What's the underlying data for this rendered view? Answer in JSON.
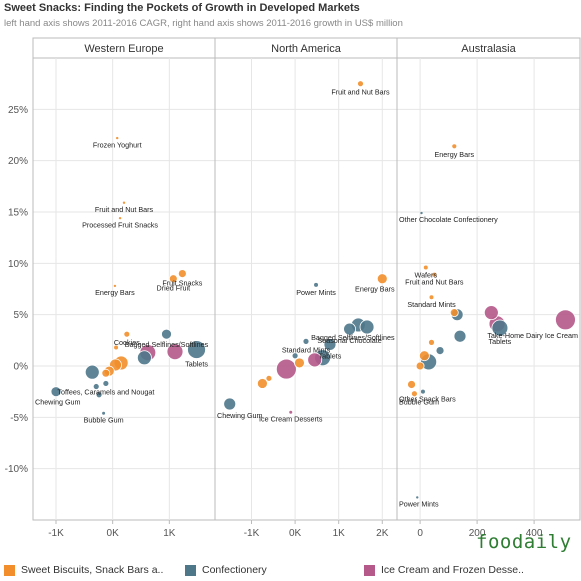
{
  "title": "Sweet Snacks: Finding the Pockets of Growth in Developed Markets",
  "subtitle": "left hand axis shows 2011-2016 CAGR, right hand axis shows 2011-2016 growth in US$ million",
  "brand": "foodaily",
  "colors": {
    "Sweet Biscuits": "#f28e2b",
    "Confectionery": "#4e7789",
    "Ice Cream": "#b5588a",
    "grid": "#e6e6e6",
    "axis": "#bbbbbb"
  },
  "legend": [
    {
      "series": "Sweet Biscuits",
      "label": "Sweet Biscuits, Snack Bars a.."
    },
    {
      "series": "Confectionery",
      "label": "Confectionery"
    },
    {
      "series": "Ice Cream",
      "label": "Ice Cream and Frozen Desse.."
    }
  ],
  "chart_data": {
    "type": "scatter",
    "ylim": [
      -15,
      30
    ],
    "y_ticks": [
      -10,
      -5,
      0,
      5,
      10,
      15,
      20,
      25
    ],
    "y_tick_labels": [
      "-10%",
      "-5%",
      "0%",
      "5%",
      "10%",
      "15%",
      "20%",
      "25%"
    ],
    "panels": [
      {
        "name": "Western Europe",
        "xlim": [
          -1300,
          1700
        ],
        "x_ticks": [
          -1000,
          0,
          1000
        ],
        "x_tick_labels": [
          "-1K",
          "0K",
          "1K"
        ],
        "points": [
          {
            "x": -1000,
            "y": -2.5,
            "series": "Confectionery",
            "r": 5,
            "label": "Chewing Gum"
          },
          {
            "x": -360,
            "y": -0.6,
            "series": "Confectionery",
            "r": 7
          },
          {
            "x": -290,
            "y": -2.0,
            "series": "Confectionery",
            "r": 3
          },
          {
            "x": -240,
            "y": -2.8,
            "series": "Confectionery",
            "r": 3
          },
          {
            "x": -160,
            "y": -4.6,
            "series": "Confectionery",
            "r": 1.5,
            "label": "Bubble Gum"
          },
          {
            "x": -120,
            "y": -1.7,
            "series": "Confectionery",
            "r": 3,
            "label": "Toffees, Caramels and Nougat"
          },
          {
            "x": 80,
            "y": 22.2,
            "series": "Sweet Biscuits",
            "r": 1.2,
            "label": "Frozen Yoghurt"
          },
          {
            "x": 200,
            "y": 15.9,
            "series": "Sweet Biscuits",
            "r": 1.2,
            "label": "Fruit and Nut Bars"
          },
          {
            "x": 130,
            "y": 14.4,
            "series": "Sweet Biscuits",
            "r": 1.2,
            "label": "Processed Fruit Snacks"
          },
          {
            "x": 40,
            "y": 7.8,
            "series": "Sweet Biscuits",
            "r": 1.2,
            "label": "Energy Bars"
          },
          {
            "x": 1070,
            "y": 8.5,
            "series": "Sweet Biscuits",
            "r": 4,
            "label": "Dried Fruit"
          },
          {
            "x": 1230,
            "y": 9.0,
            "series": "Sweet Biscuits",
            "r": 4,
            "label": "Fruit Snacks"
          },
          {
            "x": 250,
            "y": 3.1,
            "series": "Sweet Biscuits",
            "r": 3,
            "label": "Cookies"
          },
          {
            "x": 60,
            "y": 1.8,
            "series": "Sweet Biscuits",
            "r": 2
          },
          {
            "x": 950,
            "y": 3.1,
            "series": "Confectionery",
            "r": 5,
            "label": "Bagged Selflines/Softlines"
          },
          {
            "x": 1480,
            "y": 1.6,
            "series": "Confectionery",
            "r": 9,
            "label": "Tablets"
          },
          {
            "x": 1100,
            "y": 1.4,
            "series": "Ice Cream",
            "r": 8
          },
          {
            "x": 620,
            "y": 1.3,
            "series": "Ice Cream",
            "r": 8
          },
          {
            "x": 560,
            "y": 0.8,
            "series": "Confectionery",
            "r": 7
          },
          {
            "x": 150,
            "y": 0.3,
            "series": "Sweet Biscuits",
            "r": 7
          },
          {
            "x": 50,
            "y": 0.1,
            "series": "Sweet Biscuits",
            "r": 6
          },
          {
            "x": -60,
            "y": -0.5,
            "series": "Sweet Biscuits",
            "r": 5
          },
          {
            "x": -120,
            "y": -0.7,
            "series": "Sweet Biscuits",
            "r": 4
          }
        ]
      },
      {
        "name": "North America",
        "xlim": [
          -1700,
          2200
        ],
        "x_ticks": [
          -1000,
          0,
          1000,
          2000
        ],
        "x_tick_labels": [
          "-1K",
          "0K",
          "1K",
          "2K"
        ],
        "points": [
          {
            "x": 1500,
            "y": 27.5,
            "series": "Sweet Biscuits",
            "r": 3,
            "label": "Fruit and Nut Bars"
          },
          {
            "x": 2000,
            "y": 8.5,
            "series": "Sweet Biscuits",
            "r": 5,
            "label": "Energy Bars"
          },
          {
            "x": 480,
            "y": 7.9,
            "series": "Confectionery",
            "r": 2,
            "label": "Power Mints"
          },
          {
            "x": 1450,
            "y": 4.0,
            "series": "Confectionery",
            "r": 7,
            "label": "Bagged Selflines/Softlines"
          },
          {
            "x": 1650,
            "y": 3.8,
            "series": "Confectionery",
            "r": 7
          },
          {
            "x": 1250,
            "y": 3.6,
            "series": "Confectionery",
            "r": 6,
            "label": "Seasonal Chocolate"
          },
          {
            "x": 250,
            "y": 2.4,
            "series": "Confectionery",
            "r": 3,
            "label": "Standard Mints"
          },
          {
            "x": 800,
            "y": 2.1,
            "series": "Confectionery",
            "r": 6,
            "label": "Tablets"
          },
          {
            "x": 630,
            "y": 0.8,
            "series": "Confectionery",
            "r": 8
          },
          {
            "x": 450,
            "y": 0.6,
            "series": "Ice Cream",
            "r": 7
          },
          {
            "x": 100,
            "y": 0.3,
            "series": "Sweet Biscuits",
            "r": 5
          },
          {
            "x": 0,
            "y": 1.0,
            "series": "Confectionery",
            "r": 3
          },
          {
            "x": -200,
            "y": -0.3,
            "series": "Ice Cream",
            "r": 10
          },
          {
            "x": -750,
            "y": -1.7,
            "series": "Sweet Biscuits",
            "r": 5
          },
          {
            "x": -600,
            "y": -1.2,
            "series": "Sweet Biscuits",
            "r": 3
          },
          {
            "x": -1500,
            "y": -3.7,
            "series": "Confectionery",
            "r": 6,
            "label": "Chewing Gum"
          },
          {
            "x": -100,
            "y": -4.5,
            "series": "Ice Cream",
            "r": 1.5,
            "label": "Ice Cream Desserts"
          }
        ]
      },
      {
        "name": "Australasia",
        "xlim": [
          -60,
          540
        ],
        "x_ticks": [
          0,
          200,
          400
        ],
        "x_tick_labels": [
          "0",
          "200",
          "400"
        ],
        "points": [
          {
            "x": 120,
            "y": 21.4,
            "series": "Sweet Biscuits",
            "r": 2.5,
            "label": "Energy Bars"
          },
          {
            "x": 5,
            "y": 14.9,
            "series": "Confectionery",
            "r": 1.2,
            "label": "Other Chocolate Confectionery"
          },
          {
            "x": 20,
            "y": 9.6,
            "series": "Sweet Biscuits",
            "r": 2,
            "label": "Wafers"
          },
          {
            "x": 50,
            "y": 8.9,
            "series": "Sweet Biscuits",
            "r": 2,
            "label": "Fruit and Nut Bars"
          },
          {
            "x": 40,
            "y": 6.7,
            "series": "Sweet Biscuits",
            "r": 2,
            "label": "Standard Mints"
          },
          {
            "x": 510,
            "y": 4.5,
            "series": "Ice Cream",
            "r": 10,
            "label": "Take-Home Dairy Ice Cream"
          },
          {
            "x": 270,
            "y": 4.1,
            "series": "Ice Cream",
            "r": 8
          },
          {
            "x": 280,
            "y": 3.7,
            "series": "Confectionery",
            "r": 8,
            "label": "Tablets"
          },
          {
            "x": 250,
            "y": 5.2,
            "series": "Ice Cream",
            "r": 7
          },
          {
            "x": 130,
            "y": 5.0,
            "series": "Confectionery",
            "r": 6
          },
          {
            "x": 120,
            "y": 5.2,
            "series": "Sweet Biscuits",
            "r": 4
          },
          {
            "x": 140,
            "y": 2.9,
            "series": "Confectionery",
            "r": 6
          },
          {
            "x": 70,
            "y": 1.5,
            "series": "Confectionery",
            "r": 4
          },
          {
            "x": 30,
            "y": 0.4,
            "series": "Confectionery",
            "r": 8
          },
          {
            "x": 15,
            "y": 1.0,
            "series": "Sweet Biscuits",
            "r": 5
          },
          {
            "x": 0,
            "y": 0.0,
            "series": "Sweet Biscuits",
            "r": 4
          },
          {
            "x": 40,
            "y": 2.3,
            "series": "Sweet Biscuits",
            "r": 3
          },
          {
            "x": -30,
            "y": -1.8,
            "series": "Sweet Biscuits",
            "r": 4
          },
          {
            "x": -20,
            "y": -2.7,
            "series": "Sweet Biscuits",
            "r": 3,
            "label": "Bubble Gum"
          },
          {
            "x": 10,
            "y": -2.5,
            "series": "Confectionery",
            "r": 2,
            "label": "Other Snack Bars"
          },
          {
            "x": -10,
            "y": -12.8,
            "series": "Confectionery",
            "r": 1.2,
            "label": "Power Mints"
          }
        ]
      }
    ]
  }
}
